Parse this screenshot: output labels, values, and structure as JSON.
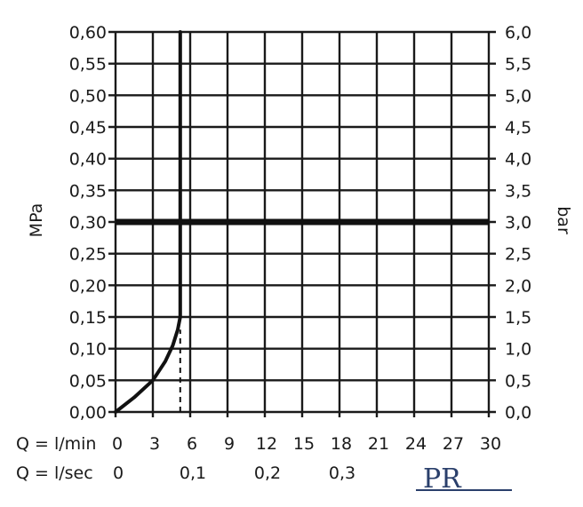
{
  "chart_data": {
    "type": "line",
    "left_axis": {
      "label": "MPa",
      "ticks": [
        "0,00",
        "0,05",
        "0,10",
        "0,15",
        "0,20",
        "0,25",
        "0,30",
        "0,35",
        "0,40",
        "0,45",
        "0,50",
        "0,55",
        "0,60"
      ],
      "range": [
        0,
        0.6
      ]
    },
    "right_axis": {
      "label": "bar",
      "ticks": [
        "0,0",
        "0,5",
        "1,0",
        "1,5",
        "2,0",
        "2,5",
        "3,0",
        "3,5",
        "4,0",
        "4,5",
        "5,0",
        "5,5",
        "6,0"
      ],
      "range": [
        0,
        6.0
      ]
    },
    "x_axis": {
      "range": [
        0,
        30
      ],
      "rows": [
        {
          "label": "Q = l/min",
          "ticks": [
            {
              "value": 0,
              "text": "0"
            },
            {
              "value": 3,
              "text": "3"
            },
            {
              "value": 6,
              "text": "6"
            },
            {
              "value": 9,
              "text": "9"
            },
            {
              "value": 12,
              "text": "12"
            },
            {
              "value": 15,
              "text": "15"
            },
            {
              "value": 18,
              "text": "18"
            },
            {
              "value": 21,
              "text": "21"
            },
            {
              "value": 24,
              "text": "24"
            },
            {
              "value": 27,
              "text": "27"
            },
            {
              "value": 30,
              "text": "30"
            }
          ]
        },
        {
          "label": "Q = l/sec",
          "ticks": [
            {
              "value": 0,
              "text": "0"
            },
            {
              "value": 6,
              "text": "0,1"
            },
            {
              "value": 12,
              "text": "0,2"
            },
            {
              "value": 18,
              "text": "0,3"
            }
          ]
        }
      ]
    },
    "grid": true,
    "series": [
      {
        "values": [
          {
            "x": 0,
            "y": 0
          },
          {
            "x": 1.5,
            "y": 0.023
          },
          {
            "x": 3,
            "y": 0.05
          },
          {
            "x": 4,
            "y": 0.08
          },
          {
            "x": 4.6,
            "y": 0.105
          },
          {
            "x": 5.0,
            "y": 0.13
          },
          {
            "x": 5.2,
            "y": 0.15
          },
          {
            "x": 5.2,
            "y": 0.6
          }
        ]
      }
    ],
    "reference_lines": [
      {
        "orientation": "horizontal",
        "y": 0.3,
        "style": "thick"
      },
      {
        "orientation": "vertical",
        "x": 5.2,
        "y_from": 0,
        "y_to": 0.13,
        "style": "dashed"
      }
    ]
  },
  "logo": {
    "text": "PR"
  }
}
